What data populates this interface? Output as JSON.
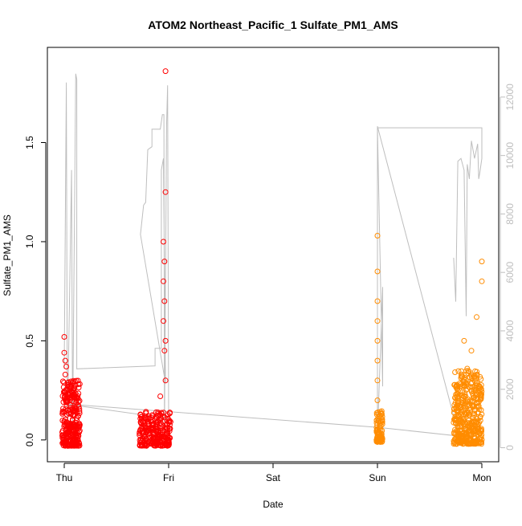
{
  "chart_data": {
    "type": "scatter",
    "title": "ATOM2 Northeast_Pacific_1 Sulfate_PM1_AMS",
    "xlabel": "Date",
    "ylabel": "Sulfate_PM1_AMS",
    "x_ticks": [
      "Thu",
      "Fri",
      "Sat",
      "Sun",
      "Mon"
    ],
    "ylim": [
      -0.11,
      1.98
    ],
    "y_ticks": [
      0.0,
      0.5,
      1.0,
      1.5
    ],
    "y_tick_labels": [
      "0.0",
      "0.5",
      "1.0",
      "1.5"
    ],
    "y2lim": [
      -480,
      13700
    ],
    "y2_ticks": [
      0,
      2000,
      4000,
      6000,
      8000,
      10000,
      12000
    ],
    "y2_tick_labels": [
      "0",
      "2000",
      "4000",
      "6000",
      "8000",
      "10000",
      "12000"
    ],
    "grid": false,
    "legend": "none",
    "colors": {
      "series_early": "#ff0000",
      "series_late": "#ff8c00",
      "altitude_line": "#bebebe",
      "axis": "#000000",
      "secondary_axis": "#bebebe"
    },
    "series": [
      {
        "color": "#ff0000",
        "clusters": [
          {
            "x_range": [
              -0.02,
              0.15
            ],
            "y_low": -0.03,
            "y_high": 0.3,
            "density": 300,
            "outliers": [
              [
                0.0,
                0.52
              ],
              [
                0.0,
                0.44
              ],
              [
                0.01,
                0.4
              ],
              [
                0.02,
                0.37
              ],
              [
                0.01,
                0.33
              ]
            ]
          },
          {
            "x_range": [
              0.72,
              1.02
            ],
            "y_low": -0.03,
            "y_high": 0.15,
            "density": 260,
            "outliers": [
              [
                0.97,
                1.86
              ],
              [
                0.97,
                1.25
              ],
              [
                0.95,
                1.0
              ],
              [
                0.96,
                0.9
              ],
              [
                0.95,
                0.8
              ],
              [
                0.96,
                0.7
              ],
              [
                0.95,
                0.6
              ],
              [
                0.97,
                0.5
              ],
              [
                0.96,
                0.45
              ],
              [
                0.97,
                0.3
              ],
              [
                0.92,
                0.22
              ]
            ]
          }
        ]
      },
      {
        "color": "#ff8c00",
        "clusters": [
          {
            "x_range": [
              2.99,
              3.05
            ],
            "y_low": -0.01,
            "y_high": 0.15,
            "density": 90,
            "outliers": [
              [
                3.0,
                1.03
              ],
              [
                3.0,
                0.85
              ],
              [
                3.0,
                0.7
              ],
              [
                3.0,
                0.6
              ],
              [
                3.0,
                0.5
              ],
              [
                3.0,
                0.4
              ],
              [
                3.0,
                0.3
              ],
              [
                3.0,
                0.2
              ]
            ]
          },
          {
            "x_range": [
              3.73,
              4.0
            ],
            "y_low": -0.02,
            "y_high": 0.35,
            "density": 420,
            "outliers": [
              [
                4.0,
                0.9
              ],
              [
                4.0,
                0.8
              ],
              [
                3.95,
                0.62
              ],
              [
                3.9,
                0.45
              ],
              [
                3.86,
                0.36
              ],
              [
                3.83,
                0.5
              ]
            ]
          }
        ]
      }
    ],
    "altitude_line": [
      [
        0.0,
        3000
      ],
      [
        0.0,
        2700
      ],
      [
        0.02,
        12500
      ],
      [
        0.03,
        500
      ],
      [
        0.07,
        9500
      ],
      [
        0.08,
        600
      ],
      [
        0.11,
        12800
      ],
      [
        0.12,
        12600
      ],
      [
        0.12,
        2700
      ],
      [
        0.87,
        2800
      ],
      [
        0.87,
        3400
      ],
      [
        0.93,
        3400
      ],
      [
        0.93,
        9500
      ],
      [
        0.95,
        9900
      ],
      [
        0.97,
        2200
      ],
      [
        0.73,
        7300
      ],
      [
        0.76,
        8300
      ],
      [
        0.78,
        8400
      ],
      [
        0.8,
        10200
      ],
      [
        0.84,
        10300
      ],
      [
        0.84,
        10900
      ],
      [
        0.92,
        10900
      ],
      [
        0.94,
        11400
      ],
      [
        0.955,
        11400
      ],
      [
        0.96,
        500
      ],
      [
        0.98,
        11000
      ],
      [
        0.99,
        12400
      ],
      [
        1.0,
        1000
      ],
      [
        0.0,
        1500
      ],
      [
        3.0,
        700
      ],
      [
        3.78,
        400
      ],
      [
        3.0,
        11000
      ],
      [
        3.0,
        400
      ],
      [
        3.05,
        5500
      ],
      [
        3.05,
        2100
      ],
      [
        3.0,
        10950
      ],
      [
        4.0,
        10950
      ],
      [
        4.0,
        9900
      ],
      [
        3.98,
        9400
      ],
      [
        3.97,
        9200
      ],
      [
        3.96,
        10400
      ],
      [
        3.93,
        9900
      ],
      [
        3.9,
        10500
      ],
      [
        3.88,
        9200
      ],
      [
        3.86,
        9700
      ],
      [
        3.85,
        4500
      ],
      [
        3.83,
        9500
      ],
      [
        3.8,
        9900
      ],
      [
        3.77,
        9800
      ],
      [
        3.75,
        5000
      ],
      [
        3.73,
        6500
      ]
    ]
  }
}
